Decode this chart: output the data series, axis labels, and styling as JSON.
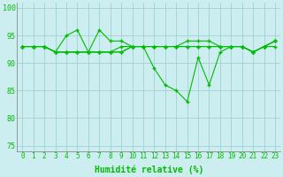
{
  "x": [
    0,
    1,
    2,
    3,
    4,
    5,
    6,
    7,
    8,
    9,
    10,
    11,
    12,
    13,
    14,
    15,
    16,
    17,
    18,
    19,
    20,
    21,
    22,
    23
  ],
  "line1": [
    93,
    93,
    93,
    92,
    95,
    96,
    92,
    96,
    94,
    94,
    93,
    93,
    89,
    86,
    85,
    83,
    91,
    86,
    92,
    93,
    93,
    92,
    93,
    94
  ],
  "line2": [
    93,
    93,
    93,
    92,
    92,
    92,
    92,
    92,
    92,
    92,
    93,
    93,
    93,
    93,
    93,
    93,
    93,
    93,
    93,
    93,
    93,
    92,
    93,
    93
  ],
  "line3": [
    93,
    93,
    93,
    92,
    92,
    92,
    92,
    92,
    92,
    92,
    93,
    93,
    93,
    93,
    93,
    94,
    94,
    94,
    93,
    93,
    93,
    92,
    93,
    94
  ],
  "line4": [
    93,
    93,
    93,
    92,
    92,
    92,
    92,
    92,
    92,
    93,
    93,
    93,
    93,
    93,
    93,
    93,
    93,
    93,
    93,
    93,
    93,
    92,
    93,
    94
  ],
  "xlabel": "Humidité relative (%)",
  "ylim": [
    74,
    101
  ],
  "yticks": [
    75,
    80,
    85,
    90,
    95,
    100
  ],
  "bg_color": "#cceef0",
  "line_color": "#00bb00",
  "grid_color": "#99cccc",
  "markersize": 3.0,
  "linewidth": 0.8,
  "tick_fontsize": 5.5,
  "xlabel_fontsize": 7.0,
  "ylabel_fontsize": 6.0
}
